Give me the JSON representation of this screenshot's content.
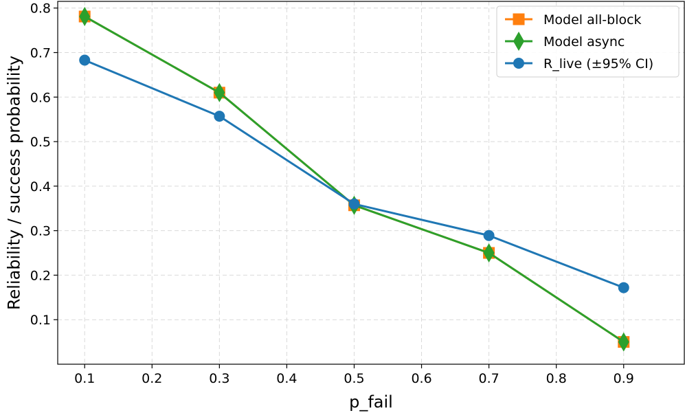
{
  "chart_data": {
    "type": "line",
    "title": "",
    "xlabel": "p_fail",
    "ylabel": "Reliability / success probability",
    "xlim": [
      0.06,
      0.99
    ],
    "ylim": [
      0.0,
      0.815
    ],
    "xticks": [
      0.1,
      0.2,
      0.3,
      0.4,
      0.5,
      0.6,
      0.7,
      0.8,
      0.9
    ],
    "xtick_labels": [
      "0.1",
      "0.2",
      "0.3",
      "0.4",
      "0.5",
      "0.6",
      "0.7",
      "0.8",
      "0.9"
    ],
    "yticks": [
      0.1,
      0.2,
      0.3,
      0.4,
      0.5,
      0.6,
      0.7,
      0.8
    ],
    "ytick_labels": [
      "0.1",
      "0.2",
      "0.3",
      "0.4",
      "0.5",
      "0.6",
      "0.7",
      "0.8"
    ],
    "grid": true,
    "legend_position": "top-right",
    "series": [
      {
        "name": "Model all-block",
        "color": "#ff7f0e",
        "marker": "square",
        "x": [
          0.1,
          0.3,
          0.5,
          0.7,
          0.9
        ],
        "y": [
          0.781,
          0.61,
          0.357,
          0.25,
          0.05
        ]
      },
      {
        "name": "Model async",
        "color": "#2ca02c",
        "marker": "diamond",
        "x": [
          0.1,
          0.3,
          0.5,
          0.7,
          0.9
        ],
        "y": [
          0.781,
          0.61,
          0.357,
          0.25,
          0.05
        ]
      },
      {
        "name": "R_live (±95% CI)",
        "color": "#1f77b4",
        "marker": "circle",
        "x": [
          0.1,
          0.3,
          0.5,
          0.7,
          0.9
        ],
        "y": [
          0.683,
          0.557,
          0.36,
          0.289,
          0.172
        ]
      }
    ]
  }
}
